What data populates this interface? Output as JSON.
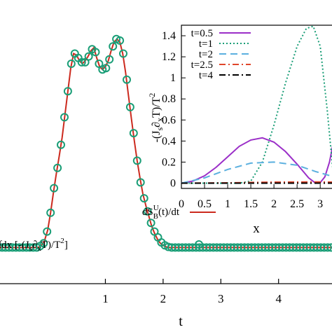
{
  "chart_data": [
    {
      "type": "line",
      "xlabel": "t",
      "ylabel": "",
      "xlim": [
        -0.85,
        4.95
      ],
      "ylim": [
        -0.25,
        1.72
      ],
      "x_ticks": [
        1,
        2,
        3,
        4
      ],
      "x_tick_labels": [
        "1",
        "2",
        "3",
        "4"
      ],
      "grid": false,
      "legend_position": "bottom-left",
      "series": [
        {
          "name": "dS",
          "legend_label": {
            "main": "dS",
            "sup": "U",
            "sub": "B",
            "rest": "(t)/dt"
          },
          "color": "#cc2a1e",
          "style": "line",
          "x": [
            -0.85,
            -0.7,
            -0.55,
            -0.45,
            -0.38,
            -0.32,
            -0.27,
            -0.22,
            -0.17,
            -0.12,
            -0.06,
            0.0,
            0.05,
            0.1,
            0.15,
            0.2,
            0.25,
            0.3,
            0.35,
            0.4,
            0.45,
            0.5,
            0.55,
            0.6,
            0.65,
            0.7,
            0.75,
            0.8,
            0.85,
            0.9,
            0.95,
            1.0,
            1.05,
            1.1,
            1.15,
            1.2,
            1.25,
            1.3,
            1.35,
            1.4,
            1.45,
            1.5,
            1.55,
            1.6,
            1.65,
            1.7,
            1.75,
            1.8,
            1.85,
            1.9,
            1.95,
            2.0,
            2.05,
            2.1,
            2.15,
            2.2,
            2.25,
            2.3,
            2.35,
            2.4,
            2.5,
            2.6,
            2.7,
            2.8,
            3.0,
            3.5,
            4.0,
            4.5,
            4.95
          ],
          "y": [
            0.0,
            0.0,
            0.0,
            0.0,
            0.0,
            0.0,
            0.0,
            0.0,
            0.0,
            0.01,
            0.04,
            0.12,
            0.24,
            0.38,
            0.51,
            0.63,
            0.76,
            0.92,
            1.08,
            1.24,
            1.34,
            1.33,
            1.29,
            1.27,
            1.29,
            1.32,
            1.36,
            1.38,
            1.31,
            1.25,
            1.23,
            1.25,
            1.29,
            1.36,
            1.42,
            1.44,
            1.42,
            1.34,
            1.21,
            1.05,
            0.89,
            0.74,
            0.6,
            0.48,
            0.37,
            0.29,
            0.22,
            0.15,
            0.1,
            0.06,
            0.03,
            0.015,
            0.005,
            0.0,
            0.0,
            0.0,
            0.0,
            0.0,
            0.0,
            0.0,
            0.0,
            0.0,
            0.0,
            0.0,
            0.0,
            0.0,
            0.0,
            0.0,
            0.0
          ]
        },
        {
          "name": "integral",
          "legend_label": {
            "pre": "∫dx [-(J",
            "s1": "s",
            "mid": "∂",
            "s2": "x",
            "tail": "T)/T",
            "sup": "2",
            "end": "]"
          },
          "color": "#1a9e77",
          "style": "circles",
          "x": [
            -0.85,
            -0.79,
            -0.73,
            -0.67,
            -0.61,
            -0.55,
            -0.49,
            -0.43,
            -0.37,
            -0.31,
            -0.25,
            -0.19,
            -0.13,
            -0.07,
            -0.01,
            0.05,
            0.11,
            0.17,
            0.23,
            0.29,
            0.35,
            0.41,
            0.47,
            0.53,
            0.59,
            0.65,
            0.71,
            0.77,
            0.83,
            0.89,
            0.95,
            1.01,
            1.07,
            1.13,
            1.19,
            1.25,
            1.31,
            1.37,
            1.43,
            1.49,
            1.55,
            1.61,
            1.67,
            1.73,
            1.79,
            1.85,
            1.91,
            1.97,
            2.03,
            2.09,
            2.15,
            2.21,
            2.27,
            2.33,
            2.39,
            2.45,
            2.51,
            2.57,
            2.63,
            2.69,
            2.75,
            2.81,
            2.87,
            2.93,
            2.99,
            3.05,
            3.11,
            3.17,
            3.23,
            3.29,
            3.35,
            3.41,
            3.47,
            3.53,
            3.59,
            3.65,
            3.71,
            3.77,
            3.83,
            3.89,
            3.95,
            4.01,
            4.07,
            4.13,
            4.19,
            4.25,
            4.31,
            4.37,
            4.43,
            4.49,
            4.55,
            4.61,
            4.67,
            4.73,
            4.79,
            4.85,
            4.91
          ],
          "y": [
            0.0,
            0.0,
            0.0,
            0.0,
            0.0,
            0.0,
            0.0,
            0.0,
            0.0,
            0.0,
            0.0,
            0.0,
            0.01,
            0.03,
            0.11,
            0.24,
            0.41,
            0.55,
            0.71,
            0.9,
            1.08,
            1.27,
            1.34,
            1.31,
            1.28,
            1.28,
            1.32,
            1.37,
            1.35,
            1.27,
            1.23,
            1.24,
            1.3,
            1.39,
            1.44,
            1.43,
            1.34,
            1.16,
            0.97,
            0.79,
            0.6,
            0.45,
            0.34,
            0.25,
            0.17,
            0.11,
            0.07,
            0.035,
            0.015,
            0.004,
            0.0,
            0.0,
            0.0,
            0.0,
            0.0,
            0.0,
            0.0,
            0.0,
            0.0,
            0.0,
            0.0,
            0.0,
            0.0,
            0.0,
            0.0,
            0.0,
            0.0,
            0.0,
            0.0,
            0.0,
            0.0,
            0.0,
            0.0,
            0.0,
            0.0,
            0.0,
            0.0,
            0.0,
            0.0,
            0.0,
            0.0,
            0.0,
            0.0,
            0.0,
            0.0,
            0.0,
            0.0,
            0.0,
            0.0,
            0.0,
            0.0,
            0.0,
            0.0,
            0.0,
            0.0,
            0.0,
            0.0
          ]
        }
      ]
    },
    {
      "type": "line",
      "title": "",
      "xlabel": "x",
      "ylabel": "-(J∂xT)/T²",
      "ylabel_parts": {
        "pre": "-(J",
        "s1": "s",
        "mid": "∂",
        "s2": "x",
        "tail": "T)/T",
        "sup": "2"
      },
      "xlim": [
        0,
        3.3
      ],
      "ylim": [
        -0.05,
        1.5
      ],
      "x_ticks": [
        0,
        0.5,
        1,
        1.5,
        2,
        2.5,
        3
      ],
      "x_tick_labels": [
        "0",
        "0.5",
        "1",
        "1.5",
        "2",
        "2.5",
        "3"
      ],
      "y_ticks": [
        0,
        0.2,
        0.4,
        0.6,
        0.8,
        1,
        1.2,
        1.4
      ],
      "y_tick_labels": [
        "0",
        "0.2",
        "0.4",
        "0.6",
        "0.8",
        "1",
        "1.2",
        "1.4"
      ],
      "grid": false,
      "legend_position": "top-left",
      "series": [
        {
          "name": "t=0.5",
          "color": "#9b2fc8",
          "dash": "solid",
          "x": [
            0,
            0.25,
            0.5,
            0.75,
            1.0,
            1.25,
            1.5,
            1.75,
            2.0,
            2.25,
            2.5,
            2.75,
            2.9,
            3.0,
            3.1,
            3.2,
            3.3
          ],
          "y": [
            0.0,
            0.02,
            0.07,
            0.15,
            0.25,
            0.35,
            0.41,
            0.43,
            0.39,
            0.3,
            0.18,
            0.05,
            0.0,
            0.005,
            0.06,
            0.2,
            0.42
          ]
        },
        {
          "name": "t=1",
          "color": "#1a9e77",
          "dash": "2,3",
          "x": [
            0,
            0.5,
            1.0,
            1.25,
            1.5,
            1.75,
            2.0,
            2.25,
            2.5,
            2.7,
            2.85,
            3.0,
            3.15,
            3.3
          ],
          "y": [
            0.0,
            0.0,
            0.0,
            0.0,
            0.02,
            0.2,
            0.55,
            0.95,
            1.3,
            1.47,
            1.49,
            1.3,
            0.7,
            0.0
          ]
        },
        {
          "name": "t=2",
          "color": "#5bb0df",
          "dash": "10,6",
          "x": [
            0,
            0.5,
            1.0,
            1.5,
            2.0,
            2.5,
            2.9,
            3.3
          ],
          "y": [
            0.0,
            0.05,
            0.13,
            0.19,
            0.2,
            0.17,
            0.11,
            0.06
          ]
        },
        {
          "name": "t=2.5",
          "color": "#e0462b",
          "dash": "9,4,2,4",
          "x": [
            0,
            1.0,
            2.0,
            3.0,
            3.3
          ],
          "y": [
            0.0,
            0.003,
            0.01,
            0.012,
            0.01
          ]
        },
        {
          "name": "t=4",
          "color": "#000000",
          "dash": "9,4,2,4",
          "x": [
            0,
            1.5,
            3.3
          ],
          "y": [
            0.0,
            0.0,
            0.0
          ]
        }
      ]
    }
  ]
}
